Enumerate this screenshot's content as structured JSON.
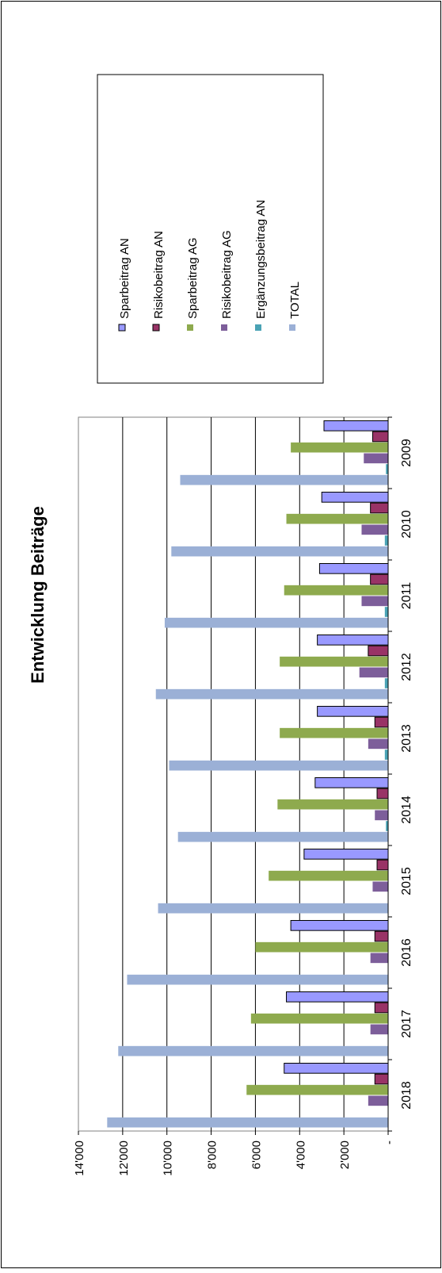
{
  "chart_data": {
    "type": "bar",
    "orientation": "rotated-90",
    "title": "Entwicklung Beiträge",
    "xlabel": "",
    "ylabel": "",
    "categories": [
      "2009",
      "2010",
      "2011",
      "2012",
      "2013",
      "2014",
      "2015",
      "2016",
      "2017",
      "2018"
    ],
    "ylim": [
      0,
      14000
    ],
    "yticks": [
      {
        "value": 0,
        "label": "-"
      },
      {
        "value": 2000,
        "label": "2'000"
      },
      {
        "value": 4000,
        "label": "4'000"
      },
      {
        "value": 6000,
        "label": "6'000"
      },
      {
        "value": 8000,
        "label": "8'000"
      },
      {
        "value": 10000,
        "label": "10'000"
      },
      {
        "value": 12000,
        "label": "12'000"
      },
      {
        "value": 14000,
        "label": "14'000"
      }
    ],
    "grid": true,
    "legend_position": "right",
    "series": [
      {
        "name": "Sparbeitrag AN",
        "color": "#9999ff",
        "border": "#000000",
        "values": [
          2900,
          3000,
          3100,
          3200,
          3200,
          3300,
          3800,
          4400,
          4600,
          4700
        ]
      },
      {
        "name": "Risikobeitrag AN",
        "color": "#993366",
        "border": "#000000",
        "values": [
          700,
          800,
          800,
          900,
          600,
          500,
          500,
          600,
          600,
          600
        ]
      },
      {
        "name": "Sparbeitrag AG",
        "color": "#8eaa4e",
        "border": "",
        "values": [
          4400,
          4600,
          4700,
          4900,
          4900,
          5000,
          5400,
          6000,
          6200,
          6400
        ]
      },
      {
        "name": "Risikobeitrag AG",
        "color": "#7d5e9a",
        "border": "",
        "values": [
          1100,
          1200,
          1200,
          1300,
          900,
          600,
          700,
          800,
          800,
          900
        ]
      },
      {
        "name": "Ergänzungsbeitrag AN",
        "color": "#4aa3b5",
        "border": "",
        "values": [
          100,
          150,
          150,
          150,
          150,
          100,
          0,
          0,
          0,
          0
        ]
      },
      {
        "name": "TOTAL",
        "color": "#9bb0d6",
        "border": "",
        "values": [
          9400,
          9800,
          10100,
          10500,
          9900,
          9500,
          10400,
          11800,
          12200,
          12700
        ]
      }
    ]
  }
}
